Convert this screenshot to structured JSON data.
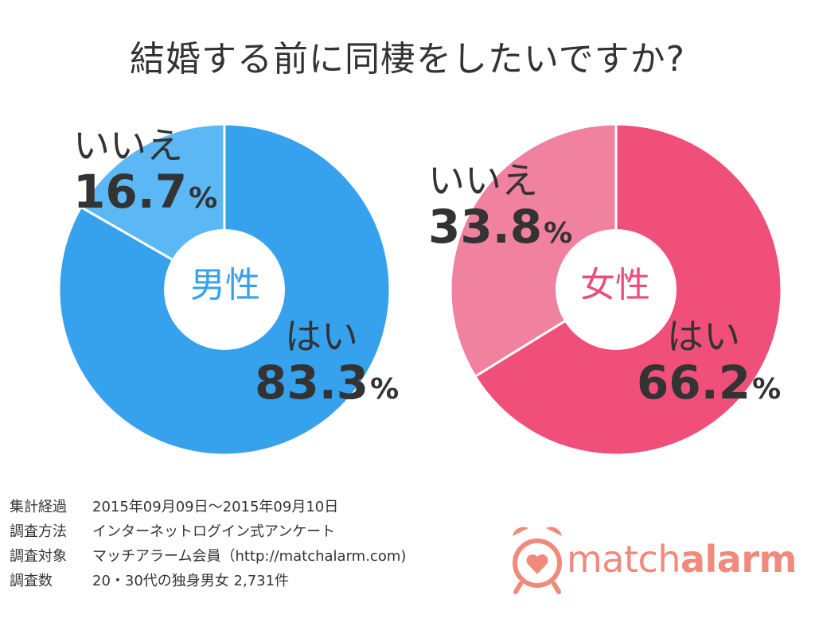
{
  "title": "結婚する前に同棲をしたいですか?",
  "chart_data": [
    {
      "type": "pie",
      "center_label": "男性",
      "categories": [
        "はい",
        "いいえ"
      ],
      "values": [
        83.3,
        16.7
      ],
      "value_labels": [
        "83.3",
        "16.7"
      ],
      "unit": "%",
      "colors": [
        "#36a1ec",
        "#5cb8f4"
      ],
      "center_color": "#36a1ec"
    },
    {
      "type": "pie",
      "center_label": "女性",
      "categories": [
        "はい",
        "いいえ"
      ],
      "values": [
        66.2,
        33.8
      ],
      "value_labels": [
        "66.2",
        "33.8"
      ],
      "unit": "%",
      "colors": [
        "#ef4f79",
        "#f0819f"
      ],
      "center_color": "#ea4d78"
    }
  ],
  "survey": [
    {
      "key": "集計経過",
      "value": "2015年09月09日～2015年09月10日"
    },
    {
      "key": "調査方法",
      "value": "インターネットログイン式アンケート"
    },
    {
      "key": "調査対象",
      "value": "マッチアラーム会員（http://matchalarm.com)"
    },
    {
      "key": "調査数",
      "value": "20・30代の独身男女 2,731件"
    }
  ],
  "logo": {
    "part1": "match",
    "part2": "alarm",
    "color": "#ef8a7c",
    "icon": "alarm-clock-heart-icon"
  }
}
